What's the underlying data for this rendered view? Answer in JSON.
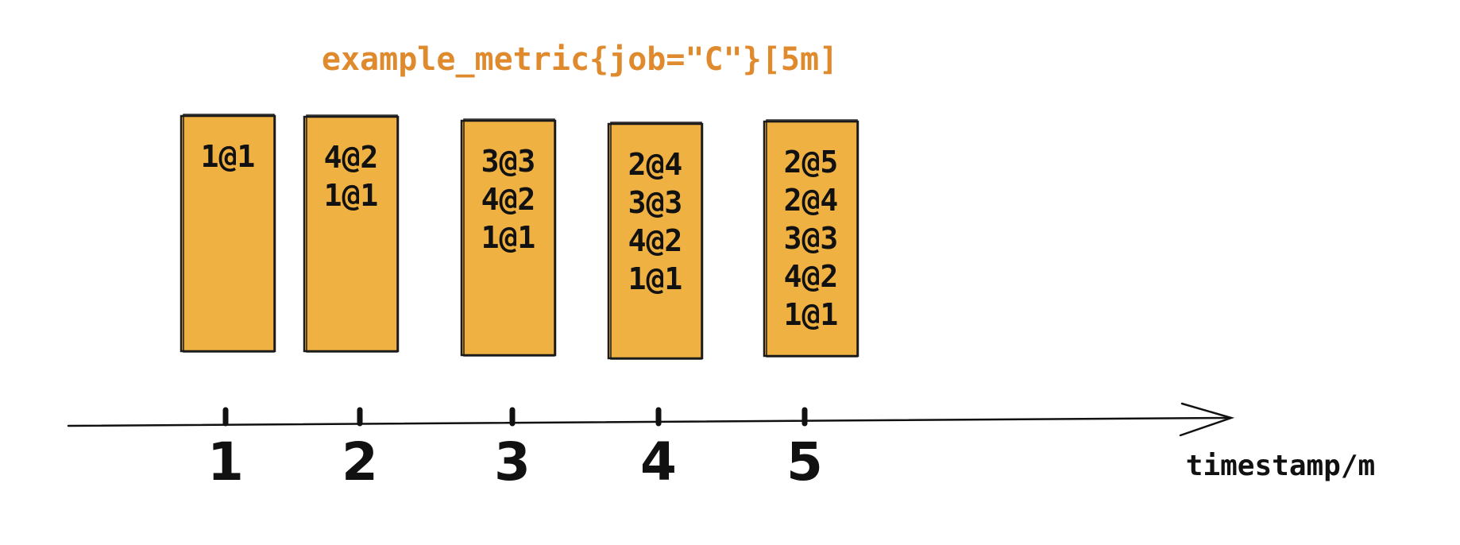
{
  "title": "example_metric{job=\"C\"}[5m]",
  "axis_label": "timestamp/m",
  "ticks": [
    "1",
    "2",
    "3",
    "4",
    "5"
  ],
  "windows": [
    {
      "timestamp": "1",
      "samples": [
        "1@1"
      ]
    },
    {
      "timestamp": "2",
      "samples": [
        "4@2",
        "1@1"
      ]
    },
    {
      "timestamp": "3",
      "samples": [
        "3@3",
        "4@2",
        "1@1"
      ]
    },
    {
      "timestamp": "4",
      "samples": [
        "2@4",
        "3@3",
        "4@2",
        "1@1"
      ]
    },
    {
      "timestamp": "5",
      "samples": [
        "2@5",
        "2@4",
        "3@3",
        "4@2",
        "1@1"
      ]
    }
  ],
  "colors": {
    "title": "#e08a2e",
    "box_fill": "#eeb142",
    "ink": "#111111"
  }
}
